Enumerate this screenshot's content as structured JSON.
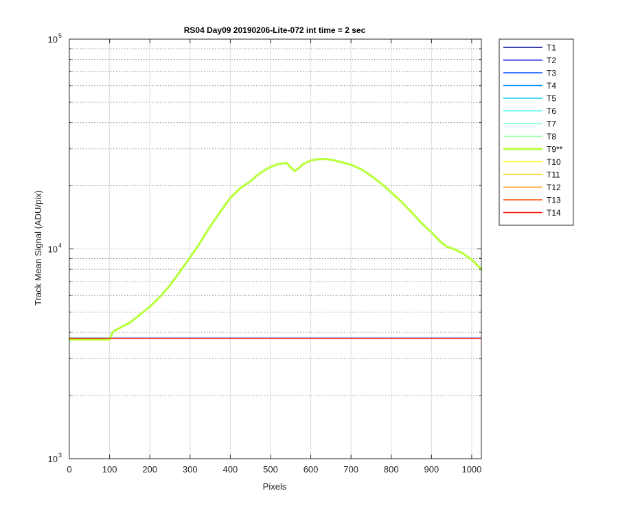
{
  "chart_data": {
    "type": "line",
    "title": "RS04 Day09 20190206-Lite-072 int time = 2 sec",
    "xlabel": "Pixels",
    "ylabel": "Track Mean Signal (ADU/pix)",
    "xlim": [
      0,
      1024
    ],
    "ylim": [
      1000,
      100000
    ],
    "yscale": "log",
    "grid": true,
    "legend_position": "outside-top-right",
    "x_ticks": [
      0,
      100,
      200,
      300,
      400,
      500,
      600,
      700,
      800,
      900,
      1000
    ],
    "x_tick_labels": [
      "0",
      "100",
      "200",
      "300",
      "400",
      "500",
      "600",
      "700",
      "800",
      "900",
      "1000"
    ],
    "y_ticks": [
      1000,
      10000,
      100000
    ],
    "y_tick_labels": [
      {
        "base": "10",
        "exp": "3"
      },
      {
        "base": "10",
        "exp": "4"
      },
      {
        "base": "10",
        "exp": "5"
      }
    ],
    "baseline_x": [
      0,
      1024
    ],
    "baseline_y": [
      3750,
      3750
    ],
    "highlight": {
      "name": "T9**",
      "x": [
        0,
        100,
        105,
        110,
        130,
        150,
        175,
        200,
        225,
        250,
        275,
        300,
        325,
        350,
        375,
        400,
        425,
        450,
        465,
        475,
        490,
        500,
        520,
        540,
        550,
        560,
        570,
        580,
        600,
        620,
        640,
        660,
        680,
        700,
        725,
        750,
        775,
        800,
        825,
        850,
        875,
        900,
        925,
        940,
        950,
        975,
        1000,
        1024
      ],
      "y": [
        3700,
        3700,
        3900,
        4050,
        4250,
        4450,
        4850,
        5300,
        5900,
        6700,
        7800,
        9100,
        10700,
        12800,
        15000,
        17500,
        19500,
        21000,
        22300,
        23000,
        24000,
        24600,
        25400,
        25700,
        24500,
        23500,
        24200,
        25300,
        26400,
        26800,
        26800,
        26400,
        25800,
        25200,
        24000,
        22300,
        20500,
        18600,
        16800,
        15000,
        13300,
        12000,
        10700,
        10200,
        10100,
        9600,
        8900,
        8000
      ]
    },
    "series": [
      {
        "name": "T1",
        "color": "#00008f"
      },
      {
        "name": "T2",
        "color": "#0000ef"
      },
      {
        "name": "T3",
        "color": "#0050ff"
      },
      {
        "name": "T4",
        "color": "#0090ff"
      },
      {
        "name": "T5",
        "color": "#10d0ff"
      },
      {
        "name": "T6",
        "color": "#30ffe8"
      },
      {
        "name": "T7",
        "color": "#70ffc8"
      },
      {
        "name": "T8",
        "color": "#90ff98"
      },
      {
        "name": "T9**",
        "color": "#b8ff40",
        "highlight": true
      },
      {
        "name": "T10",
        "color": "#ffff20"
      },
      {
        "name": "T11",
        "color": "#ffc800"
      },
      {
        "name": "T12",
        "color": "#ff8c00"
      },
      {
        "name": "T13",
        "color": "#ff4c00"
      },
      {
        "name": "T14",
        "color": "#ff1000"
      }
    ]
  }
}
